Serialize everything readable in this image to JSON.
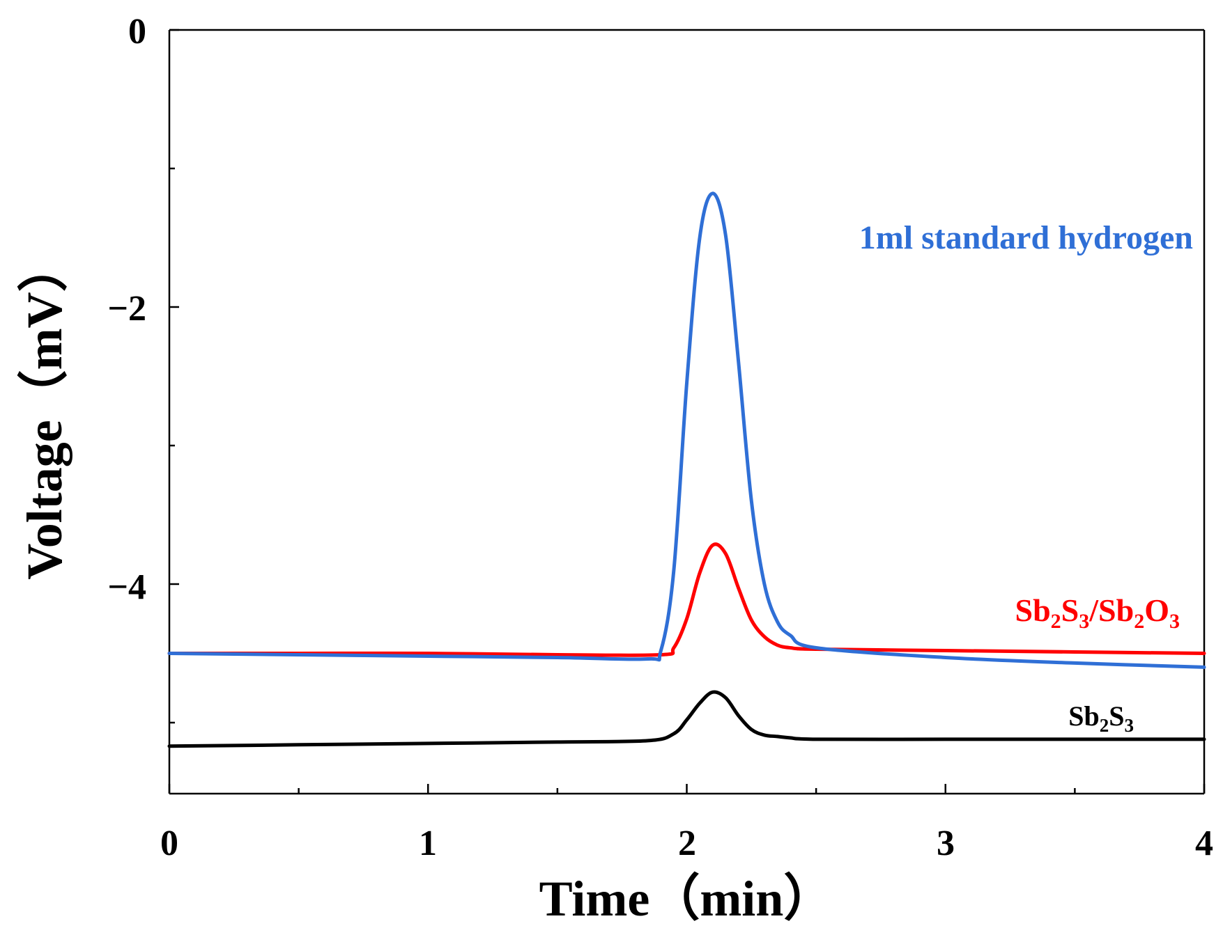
{
  "chart_data": {
    "type": "line",
    "xlabel": "Time（min）",
    "ylabel": "Voltage（mV）",
    "xlim": [
      0,
      4
    ],
    "ylim": [
      -5.5,
      0
    ],
    "x_ticks": [
      "0",
      "1",
      "2",
      "3",
      "4"
    ],
    "y_ticks": [
      "0",
      "−2",
      "−4"
    ],
    "grid": false,
    "series": [
      {
        "name": "Sb2S3",
        "label_parts": [
          "Sb",
          "2",
          "S",
          "3"
        ],
        "color": "#000000",
        "x": [
          0,
          0.5,
          1.0,
          1.5,
          1.85,
          1.95,
          2.0,
          2.05,
          2.1,
          2.15,
          2.2,
          2.25,
          2.3,
          2.35,
          2.4,
          2.5,
          3.0,
          3.5,
          4.0
        ],
        "y": [
          -5.17,
          -5.16,
          -5.15,
          -5.14,
          -5.13,
          -5.08,
          -4.98,
          -4.86,
          -4.78,
          -4.82,
          -4.95,
          -5.05,
          -5.09,
          -5.1,
          -5.11,
          -5.12,
          -5.12,
          -5.12,
          -5.12
        ]
      },
      {
        "name": "Sb2S3/Sb2O3",
        "label_parts": [
          "Sb",
          "2",
          "S",
          "3",
          "/Sb",
          "2",
          "O",
          "3"
        ],
        "color": "#ff0000",
        "x": [
          0,
          0.5,
          1.0,
          1.5,
          1.9,
          1.95,
          2.0,
          2.05,
          2.1,
          2.15,
          2.2,
          2.25,
          2.3,
          2.35,
          2.4,
          2.5,
          3.0,
          3.5,
          4.0
        ],
        "y": [
          -4.5,
          -4.5,
          -4.5,
          -4.51,
          -4.51,
          -4.46,
          -4.25,
          -3.92,
          -3.72,
          -3.78,
          -4.03,
          -4.26,
          -4.38,
          -4.44,
          -4.46,
          -4.47,
          -4.48,
          -4.49,
          -4.5
        ]
      },
      {
        "name": "1ml standard hydrogen",
        "label_parts": [
          "1ml standard hydrogen"
        ],
        "color": "#2f6fd6",
        "x": [
          0,
          0.5,
          1.0,
          1.5,
          1.85,
          1.9,
          1.95,
          2.0,
          2.05,
          2.1,
          2.15,
          2.2,
          2.25,
          2.3,
          2.35,
          2.4,
          2.5,
          3.0,
          3.5,
          4.0
        ],
        "y": [
          -4.5,
          -4.51,
          -4.52,
          -4.53,
          -4.54,
          -4.48,
          -3.9,
          -2.55,
          -1.5,
          -1.18,
          -1.48,
          -2.4,
          -3.4,
          -4.0,
          -4.27,
          -4.37,
          -4.46,
          -4.53,
          -4.57,
          -4.6
        ]
      }
    ]
  }
}
